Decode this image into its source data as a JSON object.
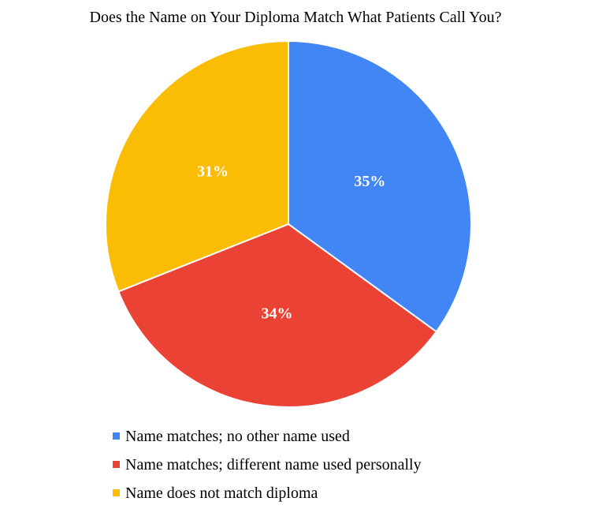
{
  "chart_data": {
    "type": "pie",
    "title": "Does the Name on Your Diploma Match What Patients Call You?",
    "slices": [
      {
        "label": "Name matches; no other name used",
        "value": 35,
        "display": "35%",
        "color": "#4285f4"
      },
      {
        "label": "Name matches; different name used personally",
        "value": 34,
        "display": "34%",
        "color": "#ea4335"
      },
      {
        "label": "Name does not match diploma",
        "value": 31,
        "display": "31%",
        "color": "#fbbc04"
      }
    ],
    "legend_position": "bottom-left"
  }
}
